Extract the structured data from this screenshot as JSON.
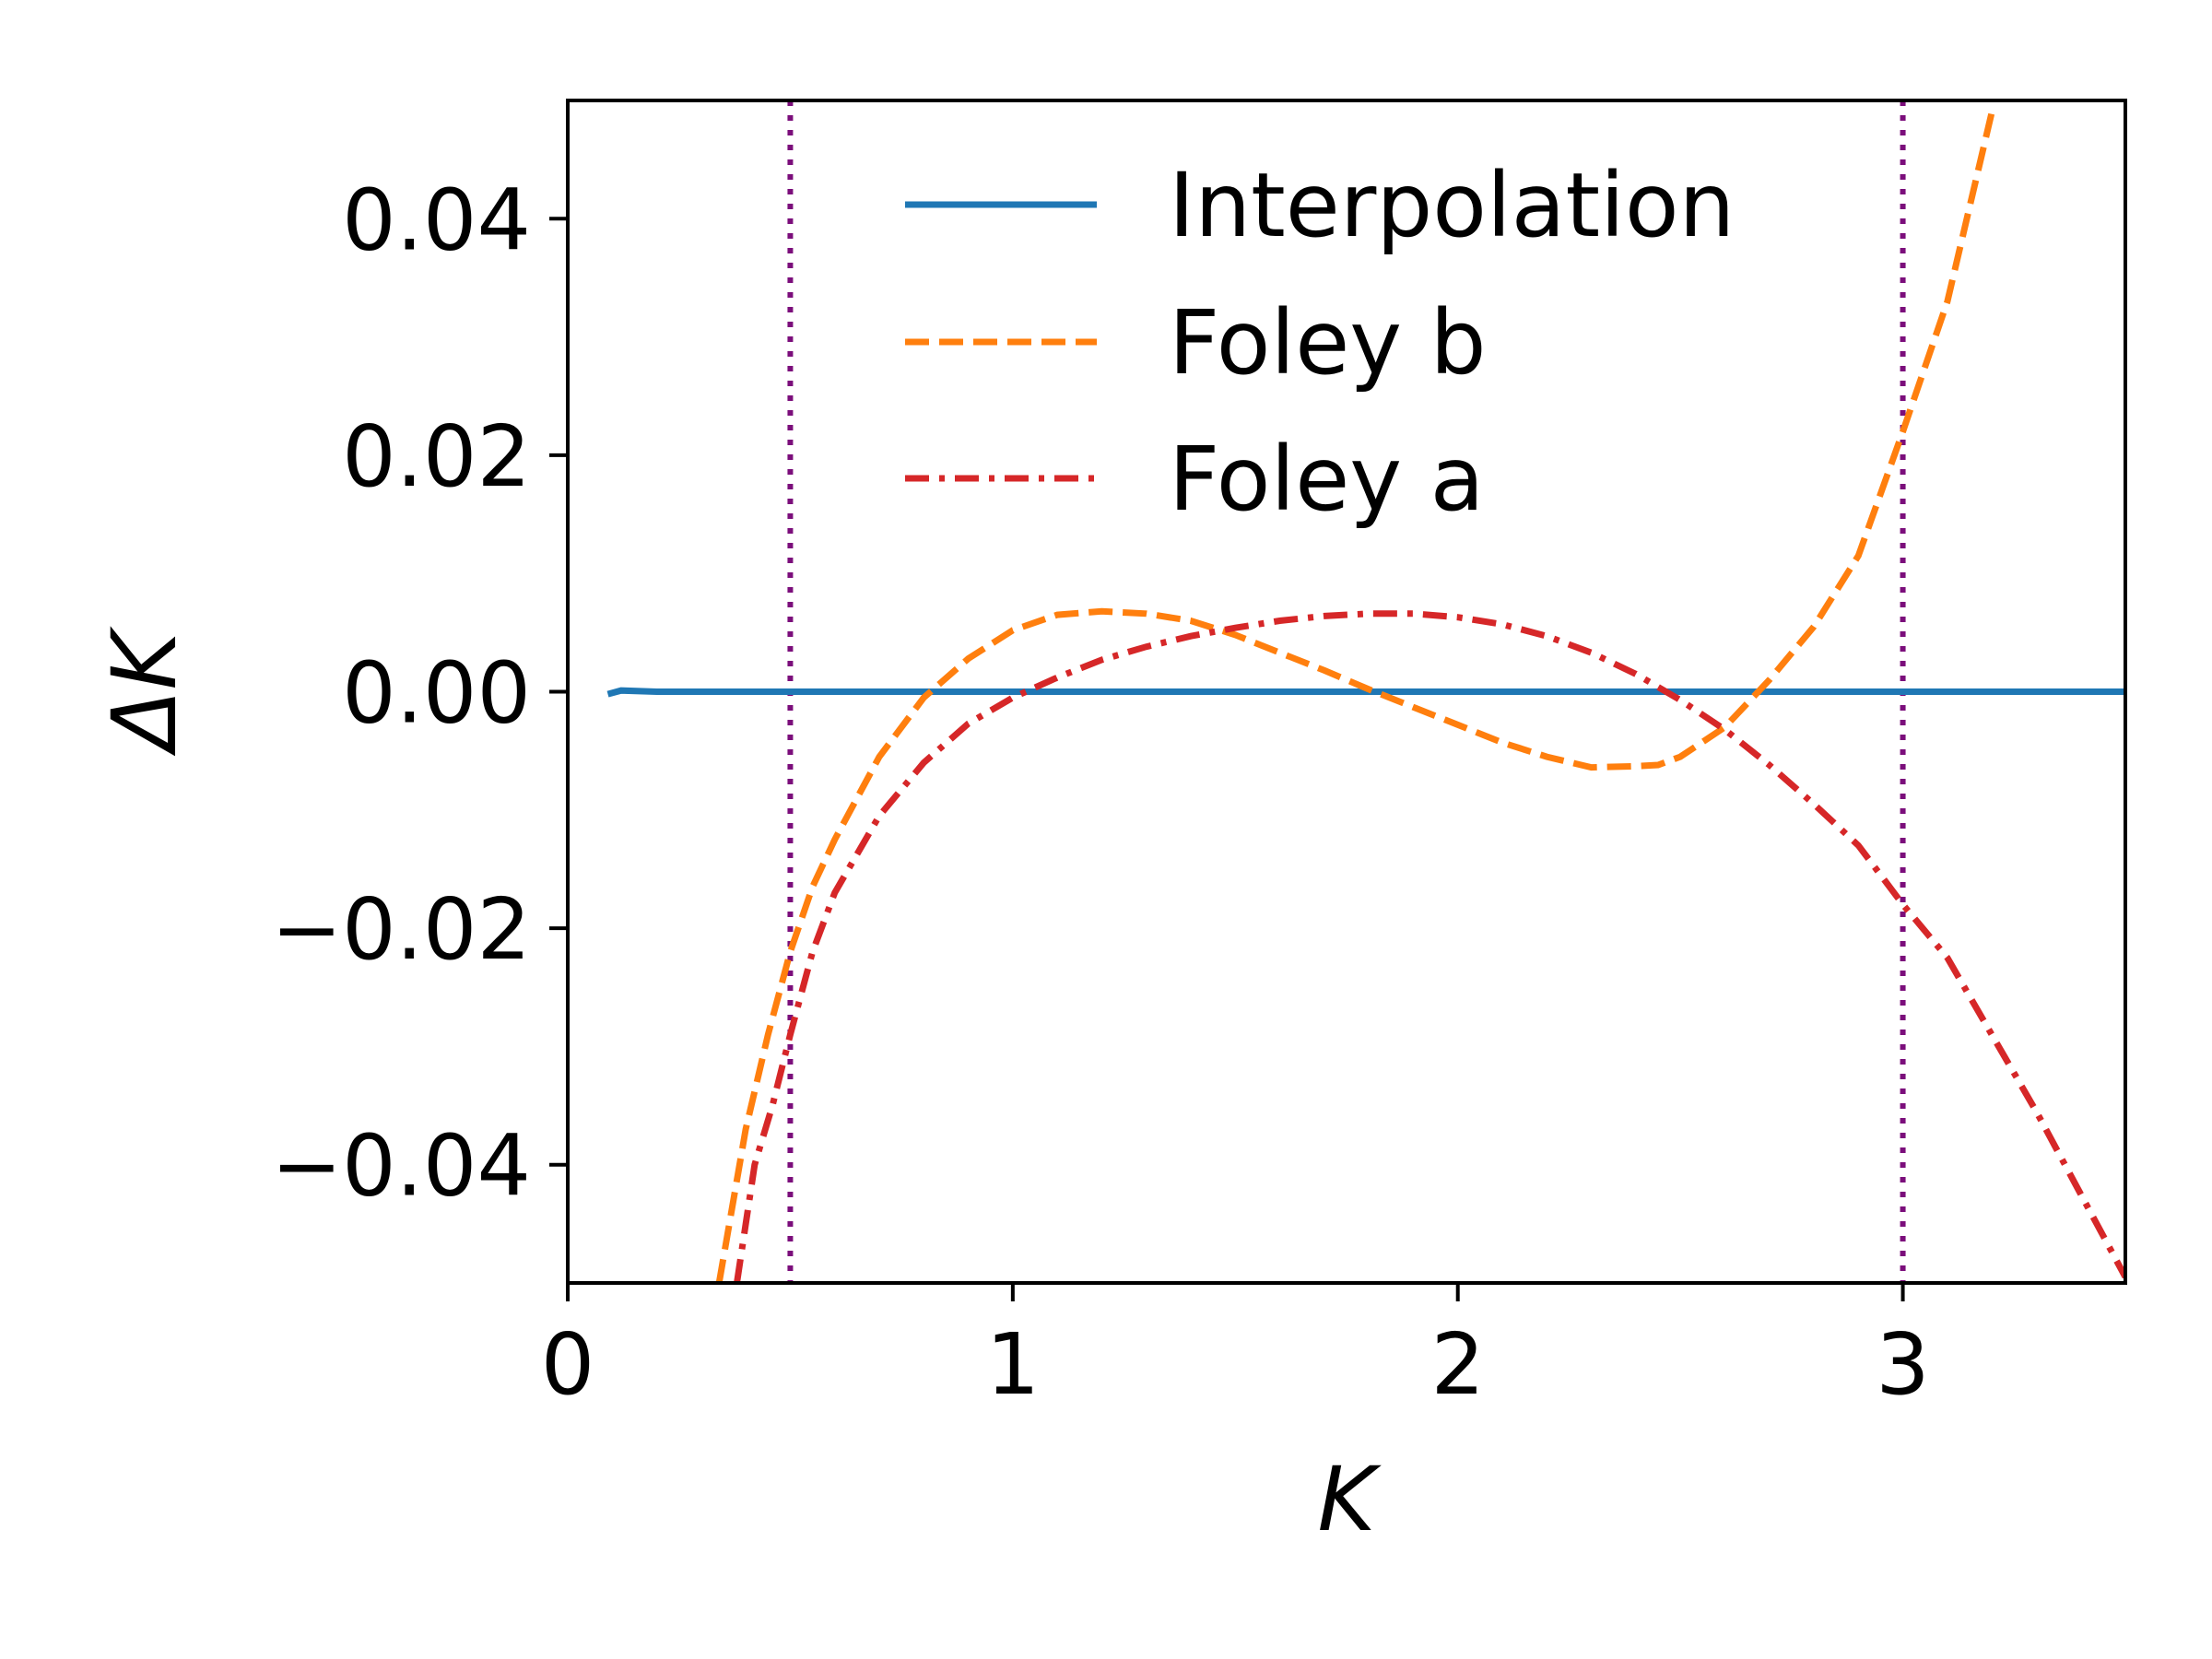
{
  "chart_data": {
    "type": "line",
    "title": "",
    "xlabel": "K",
    "ylabel": "ΔK",
    "xlim": [
      0,
      3.5
    ],
    "ylim": [
      -0.05,
      0.05
    ],
    "grid": false,
    "legend_position": "top-center",
    "x_ticks": [
      {
        "value": 0,
        "label": "0"
      },
      {
        "value": 1,
        "label": "1"
      },
      {
        "value": 2,
        "label": "2"
      },
      {
        "value": 3,
        "label": "3"
      }
    ],
    "y_ticks": [
      {
        "value": -0.04,
        "label": "−0.04"
      },
      {
        "value": -0.02,
        "label": "−0.02"
      },
      {
        "value": 0.0,
        "label": "0.00"
      },
      {
        "value": 0.02,
        "label": "0.02"
      },
      {
        "value": 0.04,
        "label": "0.04"
      }
    ],
    "vlines": [
      {
        "x": 0.5,
        "color": "#7b0e7b"
      },
      {
        "x": 3.0,
        "color": "#7b0e7b"
      }
    ],
    "series": [
      {
        "name": "Interpolation",
        "color": "#1f77b4",
        "style": "solid",
        "x": [
          0.09,
          0.12,
          0.2,
          0.4,
          0.6,
          1.0,
          1.5,
          2.0,
          2.5,
          3.0,
          3.5
        ],
        "y": [
          -0.0002,
          0.0001,
          0.0,
          0.0,
          0.0,
          0.0,
          0.0,
          0.0,
          0.0,
          0.0,
          0.0
        ]
      },
      {
        "name": "Foley b",
        "color": "#ff7f0e",
        "style": "dashed",
        "x": [
          0.34,
          0.4,
          0.45,
          0.5,
          0.55,
          0.6,
          0.7,
          0.8,
          0.9,
          1.0,
          1.1,
          1.2,
          1.3,
          1.4,
          1.5,
          1.6,
          1.7,
          1.8,
          1.9,
          2.0,
          2.1,
          2.2,
          2.3,
          2.4,
          2.45,
          2.5,
          2.6,
          2.7,
          2.8,
          2.9,
          3.0,
          3.1,
          3.2
        ],
        "y": [
          -0.05,
          -0.037,
          -0.029,
          -0.022,
          -0.0165,
          -0.0125,
          -0.0055,
          -0.0005,
          0.0028,
          0.0052,
          0.0065,
          0.0068,
          0.0066,
          0.006,
          0.0048,
          0.0033,
          0.0018,
          0.0002,
          -0.0013,
          -0.0028,
          -0.0043,
          -0.0055,
          -0.0064,
          -0.0063,
          -0.0062,
          -0.0055,
          -0.003,
          0.001,
          0.0055,
          0.0115,
          0.022,
          0.033,
          0.049
        ]
      },
      {
        "name": "Foley a",
        "color": "#d62728",
        "style": "dashdot",
        "x": [
          0.38,
          0.42,
          0.46,
          0.5,
          0.55,
          0.6,
          0.7,
          0.8,
          0.9,
          1.0,
          1.1,
          1.2,
          1.3,
          1.4,
          1.5,
          1.6,
          1.7,
          1.8,
          1.9,
          2.0,
          2.1,
          2.2,
          2.3,
          2.4,
          2.5,
          2.6,
          2.7,
          2.8,
          2.9,
          3.0,
          3.1,
          3.2,
          3.3,
          3.4,
          3.5
        ],
        "y": [
          -0.05,
          -0.04,
          -0.035,
          -0.029,
          -0.022,
          -0.017,
          -0.0105,
          -0.006,
          -0.0027,
          -0.0005,
          0.0012,
          0.0027,
          0.0038,
          0.0047,
          0.0054,
          0.006,
          0.0064,
          0.0066,
          0.0066,
          0.0063,
          0.0057,
          0.0047,
          0.0033,
          0.0015,
          -0.0007,
          -0.0032,
          -0.0062,
          -0.0095,
          -0.013,
          -0.018,
          -0.0225,
          -0.029,
          -0.0355,
          -0.0425,
          -0.0495
        ]
      }
    ]
  }
}
